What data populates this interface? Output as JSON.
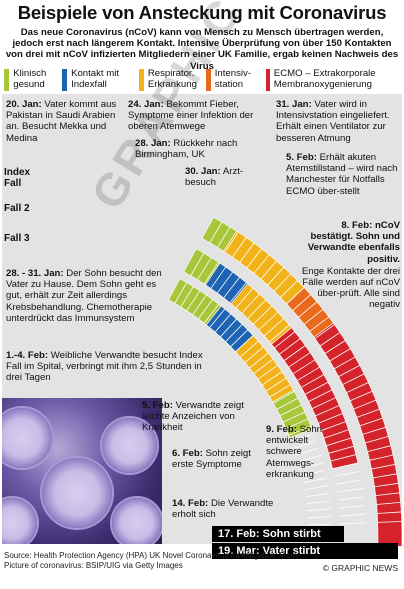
{
  "title": "Beispiele von Ansteckung mit Coronavirus",
  "subtitle": "Das neue Coronavirus (nCoV) kann von Mensch zu Mensch übertragen werden, jedoch erst nach längerem Kontakt. Intensive Überprüfung von über 150 Kontakten von drei mit nCoV infizierten Mitgliedern einer UK Familie, ergab keinen Nachweis des Virus",
  "legend": [
    {
      "label": "Klinisch gesund",
      "color": "#a7c63a"
    },
    {
      "label": "Kontakt mit Indexfall",
      "color": "#1f64b4"
    },
    {
      "label": "Respirator. Erkrankung",
      "color": "#f1b21a"
    },
    {
      "label": "Intensiv-station",
      "color": "#ea6a1d"
    },
    {
      "label": "ECMO – Extrakorporale Membranoxygenierung",
      "color": "#d4232b"
    }
  ],
  "rows": [
    {
      "label": "Index Fall"
    },
    {
      "label": "Fall 2"
    },
    {
      "label": "Fall 3"
    }
  ],
  "events": {
    "e1": {
      "date": "20. Jan:",
      "text": "Vater kommt aus Pakistan in Saudi Arabien an. Besucht Mekka und Medina"
    },
    "e2": {
      "date": "24. Jan:",
      "text": "Bekommt Fieber, Symptome einer Infektion der oberen Atemwege"
    },
    "e3": {
      "date": "28. Jan:",
      "text": "Rückkehr nach Birmingham, UK"
    },
    "e4": {
      "date": "30. Jan:",
      "text": "Arzt-besuch"
    },
    "e5": {
      "date": "31. Jan:",
      "text": "Vater wird in Intensivstation eingeliefert. Erhält einen Ventilator zur besseren Atmung"
    },
    "e6": {
      "date": "5. Feb:",
      "text": "Erhält akuten Atemstillstand – wird nach Manchester für Notfalls ECMO über-stellt"
    },
    "e7": {
      "date": "8. Feb:",
      "text": "nCoV bestätigt. Sohn und Verwandte ebenfalls positiv.",
      "extra": "Enge Kontakte der drei Fälle werden auf nCoV über-prüft. Alle sind negativ"
    },
    "e8": {
      "date": "28. - 31. Jan:",
      "text": "Der Sohn besucht den Vater zu Hause. Dem Sohn geht es gut, erhält zur Zeit allerdings Krebsbehandlung. Chemotherapie unterdrückt das Immunsystem"
    },
    "e9": {
      "date": "1.-4. Feb:",
      "text": "Weibliche Verwandte besucht Index Fall im Spital, verbringt mit ihm 2,5 Stunden in drei Tagen"
    },
    "e10": {
      "date": "5. Feb:",
      "text": "Verwandte zeigt leichte Anzeichen von Krankheit"
    },
    "e11": {
      "date": "6. Feb:",
      "text": "Sohn zeigt erste Symptome"
    },
    "e12": {
      "date": "9. Feb:",
      "text": "Sohn entwickelt schwere Atemwegs-erkrankung"
    },
    "e13": {
      "date": "14. Feb:",
      "text": "Die Verwandte erholt sich"
    }
  },
  "deaths": [
    {
      "text": "17. Feb: Sohn stirbt"
    },
    {
      "text": "19. Mar: Vater stirbt"
    }
  ],
  "source": "Source: Health Protection Agency (HPA) UK Novel Coronavirus Investigation Team",
  "picture_credit": "Picture of coronavirus: BSIP/UIG via Getty Images",
  "credit": "© GRAPHIC NEWS",
  "watermark": "GRAPHIC NEWS"
}
